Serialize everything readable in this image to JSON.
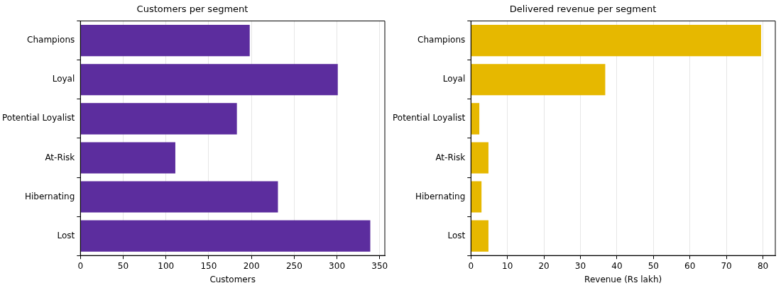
{
  "chart_data": [
    {
      "type": "bar",
      "orientation": "horizontal",
      "title": "Customers per segment",
      "xlabel": "Customers",
      "categories": [
        "Champions",
        "Loyal",
        "Potential Loyalist",
        "At-Risk",
        "Hibernating",
        "Lost"
      ],
      "values": [
        198,
        301,
        183,
        111,
        231,
        339
      ],
      "color": "#5c2d9e",
      "xlim": [
        0,
        356
      ],
      "xticks": [
        0,
        50,
        100,
        150,
        200,
        250,
        300,
        350
      ],
      "grid": "x"
    },
    {
      "type": "bar",
      "orientation": "horizontal",
      "title": "Delivered revenue per segment",
      "xlabel": "Revenue (Rs lakh)",
      "categories": [
        "Champions",
        "Loyal",
        "Potential Loyalist",
        "At-Risk",
        "Hibernating",
        "Lost"
      ],
      "values": [
        79.5,
        36.8,
        2.3,
        4.8,
        2.9,
        4.8
      ],
      "color": "#e6b800",
      "xlim": [
        0,
        83.4
      ],
      "xticks": [
        0,
        10,
        20,
        30,
        40,
        50,
        60,
        70,
        80
      ],
      "grid": "x"
    }
  ]
}
